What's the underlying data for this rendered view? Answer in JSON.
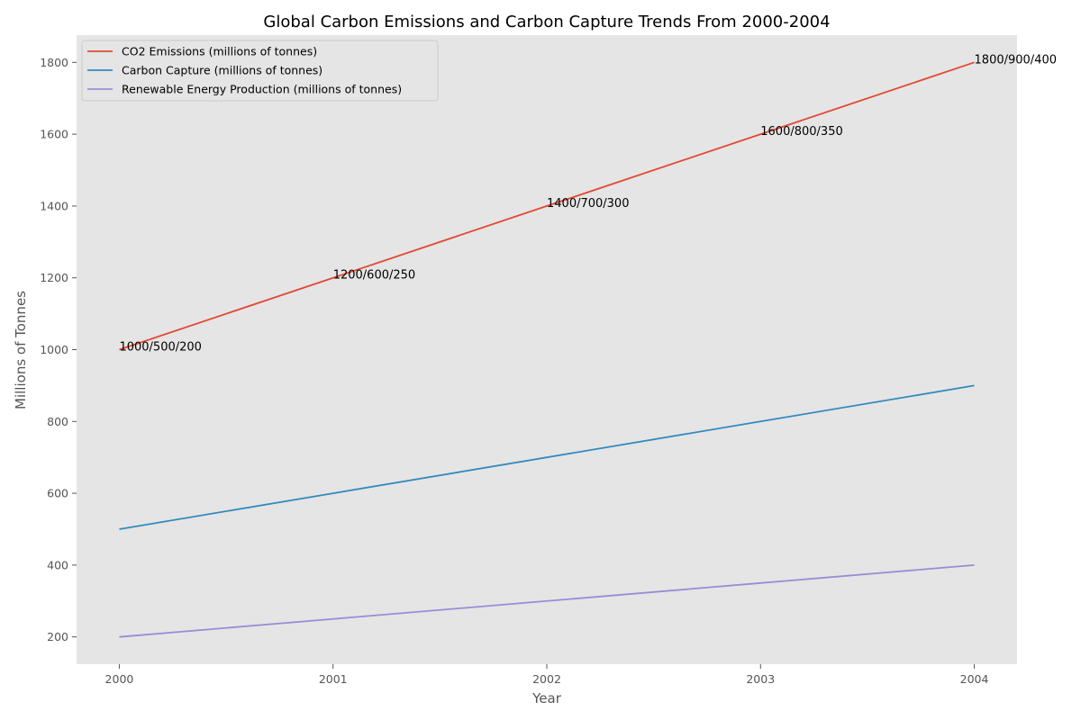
{
  "chart_data": {
    "type": "line",
    "title": "Global Carbon Emissions and Carbon Capture Trends From 2000-2004",
    "xlabel": "Year",
    "ylabel": "Millions of Tonnes",
    "categories": [
      "2000",
      "2001",
      "2002",
      "2003",
      "2004"
    ],
    "x": [
      2000,
      2001,
      2002,
      2003,
      2004
    ],
    "xlim": [
      1999.8,
      2004.2
    ],
    "ylim": [
      124,
      1876
    ],
    "yticks": [
      200,
      400,
      600,
      800,
      1000,
      1200,
      1400,
      1600,
      1800
    ],
    "grid": false,
    "legend_position": "top-left",
    "series": [
      {
        "name": "CO2 Emissions (millions of tonnes)",
        "values": [
          1000,
          1200,
          1400,
          1600,
          1800
        ],
        "color": "#E24A33"
      },
      {
        "name": "Carbon Capture (millions of tonnes)",
        "values": [
          500,
          600,
          700,
          800,
          900
        ],
        "color": "#348ABD"
      },
      {
        "name": "Renewable Energy Production (millions of tonnes)",
        "values": [
          200,
          250,
          300,
          350,
          400
        ],
        "color": "#988ED5"
      }
    ],
    "annotations": [
      {
        "x": 2000,
        "y": 1000,
        "text": "1000/500/200"
      },
      {
        "x": 2001,
        "y": 1200,
        "text": "1200/600/250"
      },
      {
        "x": 2002,
        "y": 1400,
        "text": "1400/700/300"
      },
      {
        "x": 2003,
        "y": 1600,
        "text": "1600/800/350"
      },
      {
        "x": 2004,
        "y": 1800,
        "text": "1800/900/400"
      }
    ],
    "colors": {
      "plot_background": "#E5E5E5",
      "tick_color": "#555555"
    }
  }
}
